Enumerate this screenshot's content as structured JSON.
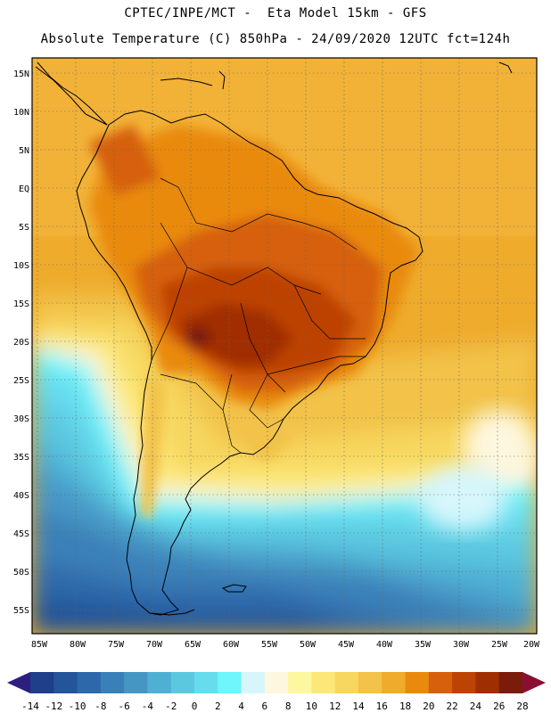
{
  "header": {
    "line1": "CPTEC/INPE/MCT -  Eta Model 15km - GFS",
    "line2": "Absolute Temperature (C) 850hPa - 24/09/2020 12UTC fct=124h"
  },
  "map": {
    "lat_labels": [
      "15N",
      "10N",
      "5N",
      "EQ",
      "5S",
      "10S",
      "15S",
      "20S",
      "25S",
      "30S",
      "35S",
      "40S",
      "45S",
      "50S",
      "55S"
    ],
    "lon_labels": [
      "85W",
      "80W",
      "75W",
      "70W",
      "65W",
      "60W",
      "55W",
      "50W",
      "45W",
      "40W",
      "35W",
      "30W",
      "25W",
      "20W"
    ]
  },
  "colorbar": {
    "ticks": [
      "-14",
      "-12",
      "-10",
      "-8",
      "-6",
      "-4",
      "-2",
      "0",
      "2",
      "4",
      "6",
      "8",
      "10",
      "12",
      "14",
      "16",
      "18",
      "20",
      "22",
      "24",
      "26",
      "28"
    ],
    "colors": [
      "#1f3f8a",
      "#245499",
      "#2d69aa",
      "#3a80b8",
      "#4696c4",
      "#4fb0d4",
      "#5cc8e0",
      "#66dced",
      "#6ff5fc",
      "#d6f6fb",
      "#fdf7df",
      "#fdf8a0",
      "#fbe878",
      "#f7d75f",
      "#f2c24a",
      "#eeab2c",
      "#e98a0f",
      "#d6600b",
      "#bd4304",
      "#a02e03",
      "#7a1c0a"
    ],
    "below_color": "#2c1f7f",
    "above_color": "#8a1033"
  }
}
